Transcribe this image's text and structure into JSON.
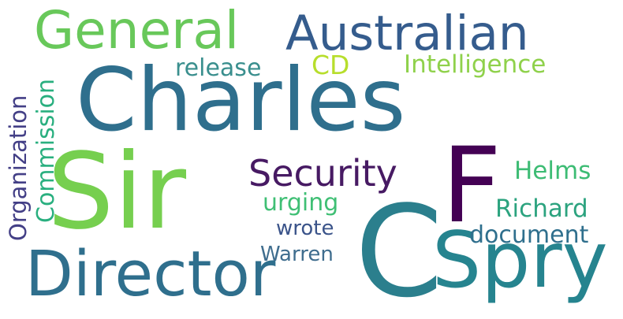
{
  "words": [
    {
      "text": "Charles",
      "color": "#2f6f8d"
    },
    {
      "text": "Sir",
      "color": "#76cf4f"
    },
    {
      "text": "C",
      "color": "#2b7f8d"
    },
    {
      "text": "Spry",
      "color": "#26848f"
    },
    {
      "text": "Director",
      "color": "#2f6f8d"
    },
    {
      "text": "F",
      "color": "#440154"
    },
    {
      "text": "General",
      "color": "#68c85a"
    },
    {
      "text": "Australian",
      "color": "#355c8d"
    },
    {
      "text": "Security",
      "color": "#471a63"
    },
    {
      "text": "Intelligence",
      "color": "#8fd14b"
    },
    {
      "text": "CD",
      "color": "#b7de2c"
    },
    {
      "text": "release",
      "color": "#3a8f8e"
    },
    {
      "text": "Organization",
      "color": "#433f86"
    },
    {
      "text": "Commission",
      "color": "#29af7f"
    },
    {
      "text": "urging",
      "color": "#3fbf74"
    },
    {
      "text": "wrote",
      "color": "#3b548a"
    },
    {
      "text": "Warren",
      "color": "#3f6d8e"
    },
    {
      "text": "Helms",
      "color": "#3dbc74"
    },
    {
      "text": "Richard",
      "color": "#2ca37f"
    },
    {
      "text": "document",
      "color": "#2f6f8d"
    }
  ]
}
